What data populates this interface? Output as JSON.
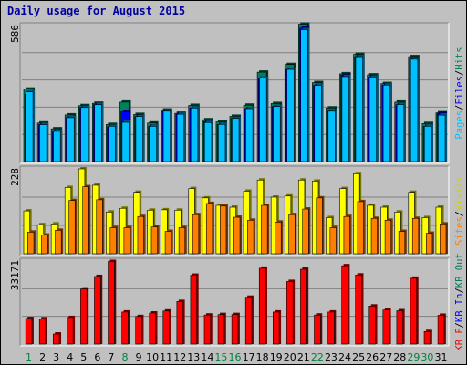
{
  "chart_data": {
    "type": "bar",
    "title": "Daily usage for August 2015",
    "days": [
      "1",
      "2",
      "3",
      "4",
      "5",
      "6",
      "7",
      "8",
      "9",
      "10",
      "11",
      "12",
      "13",
      "14",
      "15",
      "16",
      "17",
      "18",
      "19",
      "20",
      "21",
      "22",
      "23",
      "24",
      "25",
      "26",
      "27",
      "28",
      "29",
      "30",
      "31"
    ],
    "weekend_days": [
      "1",
      "8",
      "15",
      "16",
      "22",
      "29",
      "30"
    ],
    "panels": [
      {
        "id": "top",
        "max_label": "586",
        "ymax": 586,
        "series_label_parts": [
          "Pages",
          "/",
          "Files",
          "/",
          "Hits"
        ],
        "series": [
          {
            "name": "Hits",
            "color": "#00805c",
            "values": [
              312,
              166,
              141,
              201,
              241,
              251,
              160,
              256,
              203,
              166,
              222,
              208,
              242,
              180,
              171,
              195,
              243,
              385,
              250,
              418,
              592,
              340,
              231,
              378,
              462,
              373,
              336,
              256,
              452,
              164,
              210
            ]
          },
          {
            "name": "Files",
            "color": "#0000ff",
            "values": [
              290,
              159,
              130,
              189,
              233,
              245,
              150,
              215,
              194,
              152,
              217,
              204,
              231,
              173,
              160,
              186,
              228,
              359,
              237,
              397,
              575,
              328,
              217,
              373,
              452,
              364,
              329,
              245,
              441,
              152,
              207
            ]
          },
          {
            "name": "Pages",
            "color": "#00c0ff",
            "values": [
              300,
              159,
              130,
              189,
              233,
              245,
              152,
              169,
              194,
              152,
              217,
              204,
              231,
              168,
              160,
              186,
              228,
              359,
              237,
              397,
              568,
              328,
              217,
              366,
              452,
              364,
              329,
              245,
              441,
              152,
              200
            ]
          }
        ]
      },
      {
        "id": "middle",
        "max_label": "228",
        "ymax": 228,
        "series_label_parts": [
          "Sites",
          "/",
          "Visits"
        ],
        "series": [
          {
            "name": "Visits",
            "color": "#ffff00",
            "values": [
              115,
              78,
              80,
              178,
              228,
              184,
              112,
              122,
              165,
              117,
              118,
              117,
              175,
              150,
              130,
              125,
              168,
              198,
              152,
              155,
              198,
              195,
              97,
              175,
              215,
              130,
              125,
              112,
              165,
              97,
              125
            ]
          },
          {
            "name": "Sites",
            "color": "#ff8000",
            "values": [
              58,
              50,
              63,
              143,
              180,
              145,
              70,
              70,
              100,
              72,
              60,
              70,
              105,
              135,
              128,
              98,
              90,
              130,
              85,
              105,
              120,
              150,
              70,
              100,
              140,
              95,
              90,
              60,
              95,
              55,
              80
            ]
          }
        ]
      },
      {
        "id": "bottom",
        "max_label": "33171",
        "ymax": 33171,
        "series_label_parts": [
          "KB F",
          "/",
          "KB In",
          "/",
          "KB Out"
        ],
        "series": [
          {
            "name": "KB F",
            "color": "#ff0000",
            "values": [
              10200,
              10100,
              4000,
              10600,
              22000,
              27000,
              33000,
              12800,
              11000,
              12400,
              13200,
              17000,
              27500,
              11600,
              11800,
              11800,
              18700,
              30300,
              12800,
              25000,
              29900,
              11600,
              12800,
              31300,
              27600,
              15200,
              13600,
              13300,
              26300,
              5000,
              11500
            ]
          }
        ]
      }
    ]
  }
}
